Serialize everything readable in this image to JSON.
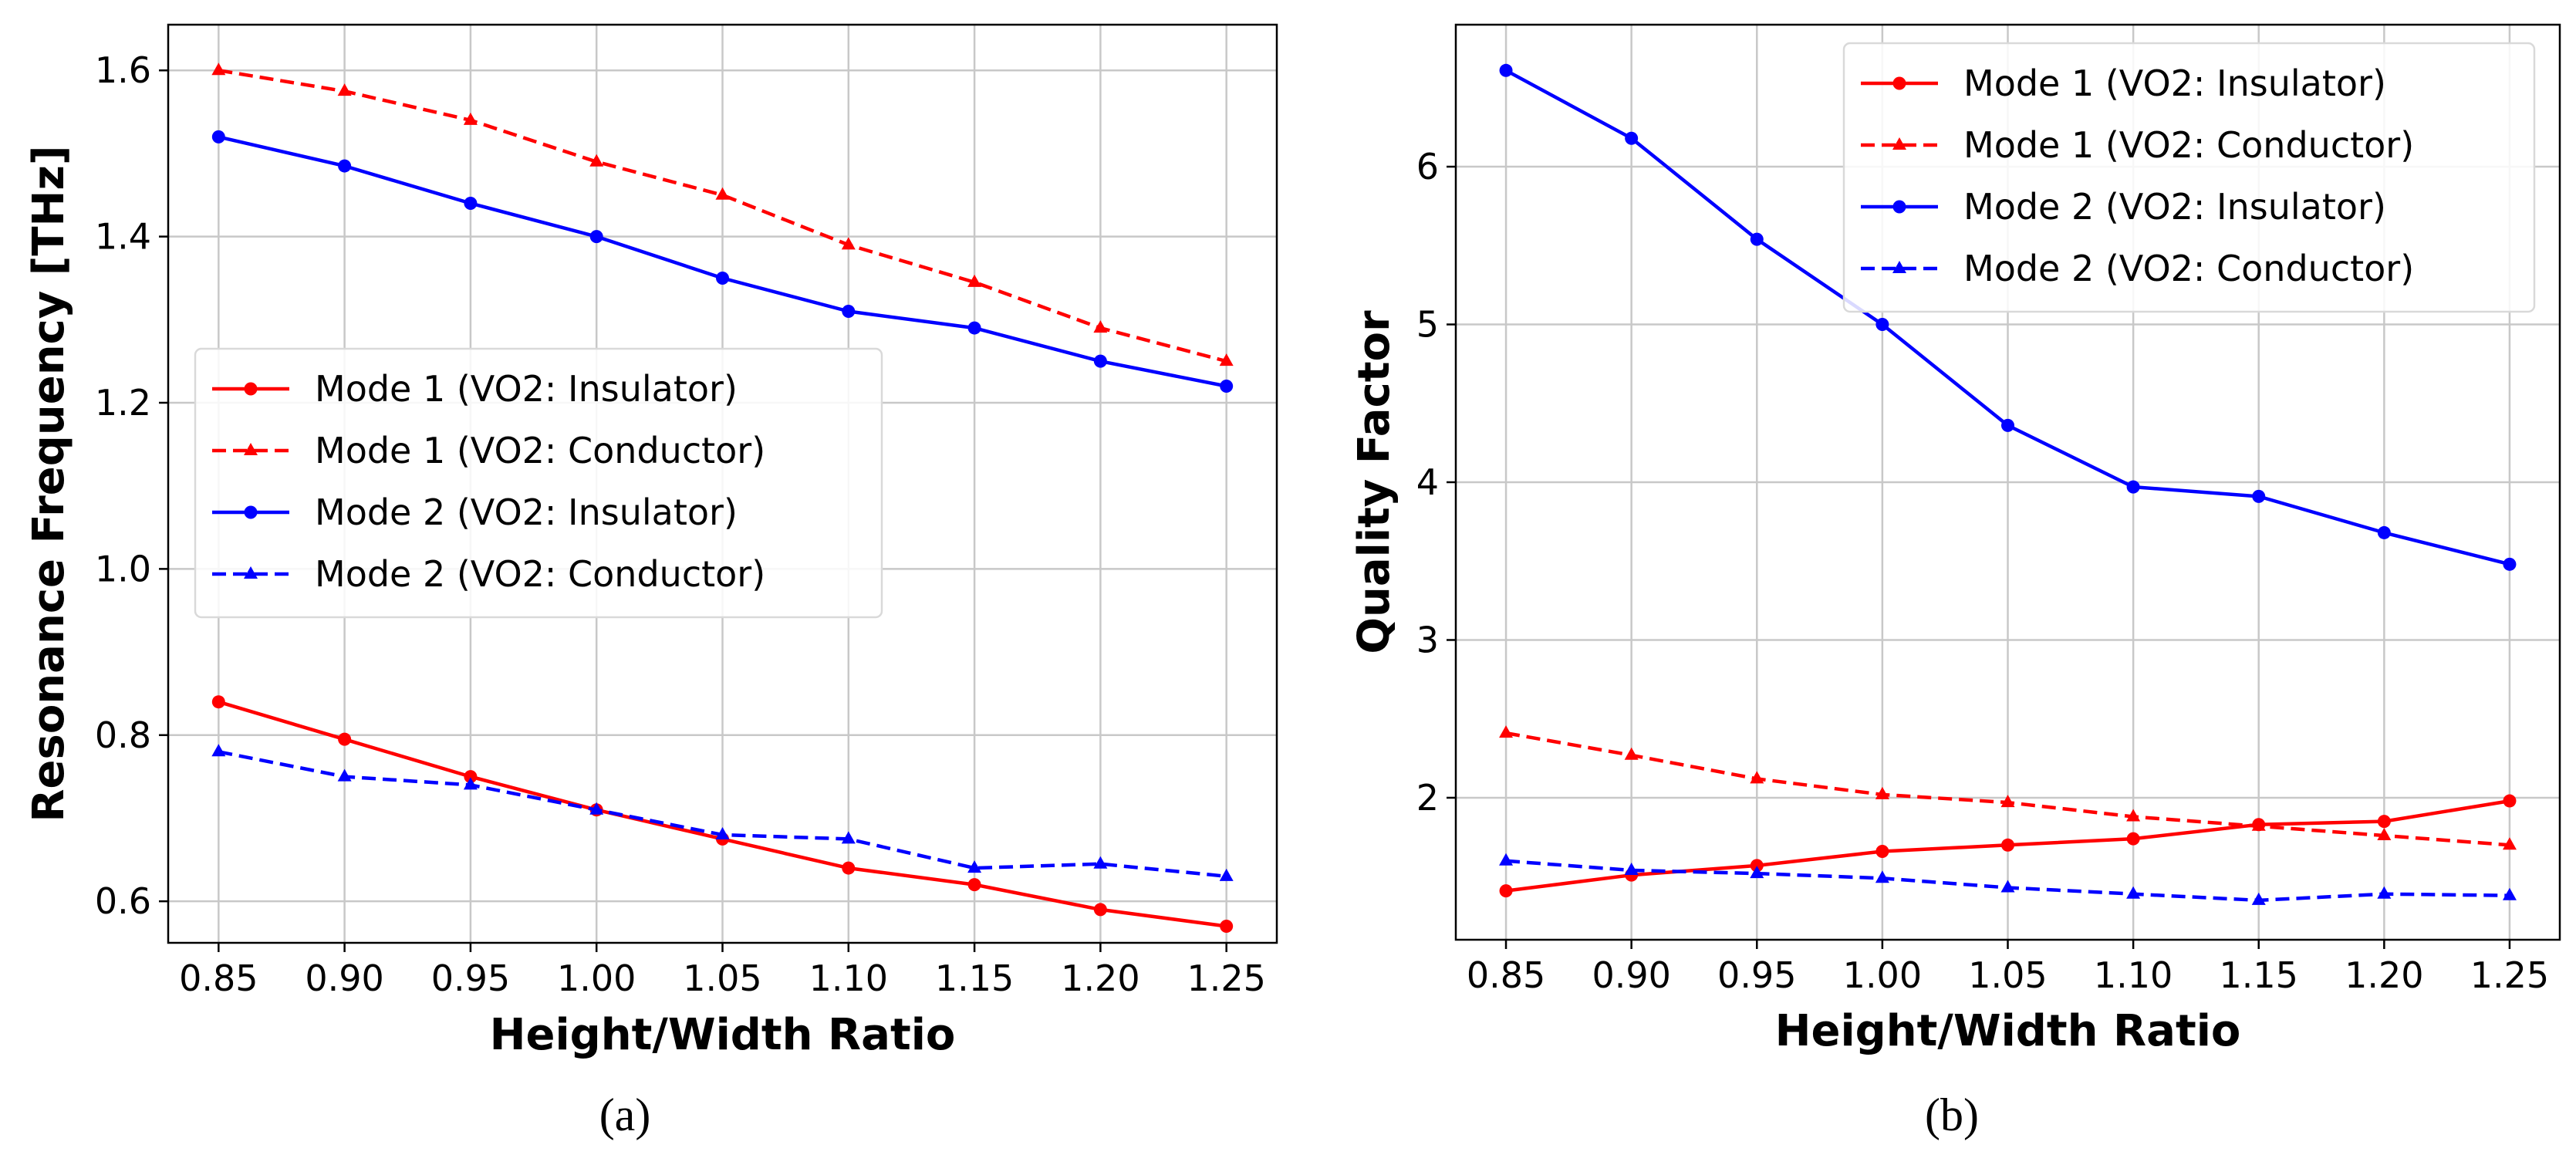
{
  "chart_data": [
    {
      "type": "line",
      "panel_label": "(a)",
      "xlabel": "Height/Width Ratio",
      "ylabel": "Resonance Frequency [THz]",
      "x": [
        0.85,
        0.9,
        0.95,
        1.0,
        1.05,
        1.1,
        1.15,
        1.2,
        1.25
      ],
      "xticks": [
        "0.85",
        "0.90",
        "0.95",
        "1.00",
        "1.05",
        "1.10",
        "1.15",
        "1.20",
        "1.25"
      ],
      "yticks": [
        "0.6",
        "0.8",
        "1.0",
        "1.2",
        "1.4",
        "1.6"
      ],
      "xlim": [
        0.83,
        1.27
      ],
      "ylim": [
        0.55,
        1.655
      ],
      "grid": true,
      "legend_position": "center-left",
      "series": [
        {
          "name": "Mode 1 (VO2: Insulator)",
          "color": "#ff0000",
          "linestyle": "solid",
          "marker": "circle",
          "values": [
            0.84,
            0.795,
            0.75,
            0.71,
            0.675,
            0.64,
            0.62,
            0.59,
            0.57
          ]
        },
        {
          "name": "Mode 1 (VO2: Conductor)",
          "color": "#ff0000",
          "linestyle": "dashed",
          "marker": "triangle",
          "values": [
            1.6,
            1.575,
            1.54,
            1.49,
            1.45,
            1.39,
            1.345,
            1.29,
            1.25
          ]
        },
        {
          "name": "Mode 2 (VO2: Insulator)",
          "color": "#0000ff",
          "linestyle": "solid",
          "marker": "circle",
          "values": [
            1.52,
            1.485,
            1.44,
            1.4,
            1.35,
            1.31,
            1.29,
            1.25,
            1.22
          ]
        },
        {
          "name": "Mode 2 (VO2: Conductor)",
          "color": "#0000ff",
          "linestyle": "dashed",
          "marker": "triangle",
          "values": [
            0.78,
            0.75,
            0.74,
            0.71,
            0.68,
            0.675,
            0.64,
            0.645,
            0.63
          ]
        }
      ]
    },
    {
      "type": "line",
      "panel_label": "(b)",
      "xlabel": "Height/Width Ratio",
      "ylabel": "Quality Factor",
      "x": [
        0.85,
        0.9,
        0.95,
        1.0,
        1.05,
        1.1,
        1.15,
        1.2,
        1.25
      ],
      "xticks": [
        "0.85",
        "0.90",
        "0.95",
        "1.00",
        "1.05",
        "1.10",
        "1.15",
        "1.20",
        "1.25"
      ],
      "yticks": [
        "2",
        "3",
        "4",
        "5",
        "6"
      ],
      "xlim": [
        0.83,
        1.27
      ],
      "ylim": [
        1.1,
        6.9
      ],
      "grid": true,
      "legend_position": "upper-right",
      "series": [
        {
          "name": "Mode 1 (VO2: Insulator)",
          "color": "#ff0000",
          "linestyle": "solid",
          "marker": "circle",
          "values": [
            1.41,
            1.51,
            1.57,
            1.66,
            1.7,
            1.74,
            1.83,
            1.85,
            1.98
          ]
        },
        {
          "name": "Mode 1 (VO2: Conductor)",
          "color": "#ff0000",
          "linestyle": "dashed",
          "marker": "triangle",
          "values": [
            2.41,
            2.27,
            2.12,
            2.02,
            1.97,
            1.88,
            1.82,
            1.76,
            1.7
          ]
        },
        {
          "name": "Mode 2 (VO2: Insulator)",
          "color": "#0000ff",
          "linestyle": "solid",
          "marker": "circle",
          "values": [
            6.61,
            6.18,
            5.54,
            5.0,
            4.36,
            3.97,
            3.91,
            3.68,
            3.48
          ]
        },
        {
          "name": "Mode 2 (VO2: Conductor)",
          "color": "#0000ff",
          "linestyle": "dashed",
          "marker": "triangle",
          "values": [
            1.6,
            1.54,
            1.52,
            1.49,
            1.43,
            1.39,
            1.35,
            1.39,
            1.38
          ]
        }
      ]
    }
  ]
}
